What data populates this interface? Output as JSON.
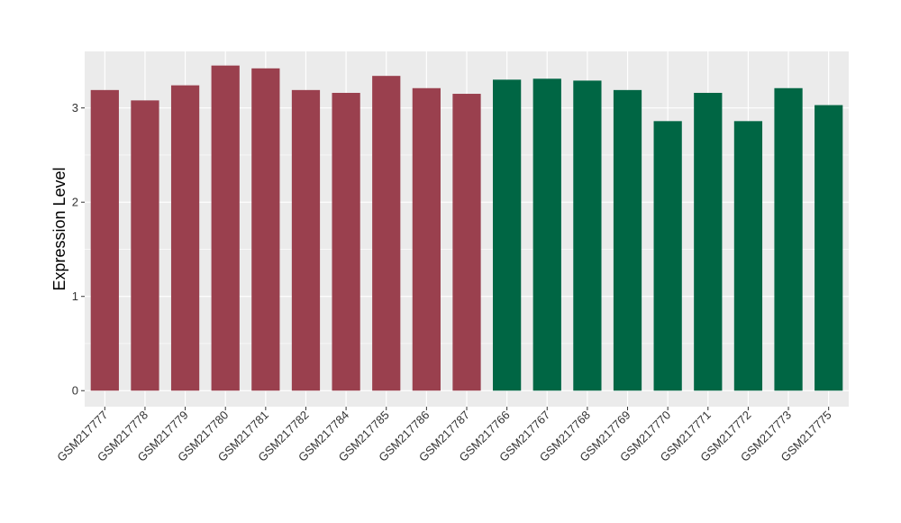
{
  "chart_data": {
    "type": "bar",
    "title": "",
    "xlabel": "",
    "ylabel": "Expression Level",
    "ylim": [
      -0.17,
      3.6
    ],
    "yticks": [
      0,
      1,
      2,
      3
    ],
    "grid": true,
    "legend": "none",
    "categories": [
      "GSM217777",
      "GSM217778",
      "GSM217779",
      "GSM217780",
      "GSM217781",
      "GSM217782",
      "GSM217784",
      "GSM217785",
      "GSM217786",
      "GSM217787",
      "GSM217766",
      "GSM217767",
      "GSM217768",
      "GSM217769",
      "GSM217770",
      "GSM217771",
      "GSM217772",
      "GSM217773",
      "GSM217775"
    ],
    "values": [
      3.19,
      3.08,
      3.24,
      3.45,
      3.42,
      3.19,
      3.16,
      3.34,
      3.21,
      3.15,
      3.3,
      3.31,
      3.29,
      3.19,
      2.86,
      3.16,
      2.86,
      3.21,
      3.03
    ],
    "groups": [
      "g1",
      "g1",
      "g1",
      "g1",
      "g1",
      "g1",
      "g1",
      "g1",
      "g1",
      "g1",
      "g2",
      "g2",
      "g2",
      "g2",
      "g2",
      "g2",
      "g2",
      "g2",
      "g2"
    ],
    "colors": {
      "g1": "#9a404e",
      "g2": "#006644",
      "panel": "#ebebeb",
      "grid": "#ffffff"
    }
  }
}
